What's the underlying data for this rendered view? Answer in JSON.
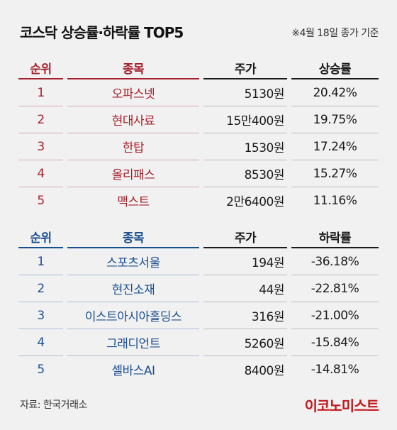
{
  "title": "코스닥 상승률·하락률 TOP5",
  "basis_date": "※4월 18일 종가 기준",
  "gainers": {
    "headers": {
      "rank": "순위",
      "name": "종목",
      "price": "주가",
      "rate": "상승률"
    },
    "rows": [
      {
        "rank": "1",
        "name": "오파스넷",
        "price": "5130원",
        "rate": "20.42%"
      },
      {
        "rank": "2",
        "name": "현대사료",
        "price": "15만400원",
        "rate": "19.75%"
      },
      {
        "rank": "3",
        "name": "한탑",
        "price": "1530원",
        "rate": "17.24%"
      },
      {
        "rank": "4",
        "name": "올리패스",
        "price": "8530원",
        "rate": "15.27%"
      },
      {
        "rank": "5",
        "name": "맥스트",
        "price": "2만6400원",
        "rate": "11.16%"
      }
    ]
  },
  "losers": {
    "headers": {
      "rank": "순위",
      "name": "종목",
      "price": "주가",
      "rate": "하락률"
    },
    "rows": [
      {
        "rank": "1",
        "name": "스포츠서울",
        "price": "194원",
        "rate": "-36.18%"
      },
      {
        "rank": "2",
        "name": "현진소재",
        "price": "44원",
        "rate": "-22.81%"
      },
      {
        "rank": "3",
        "name": "이스트아시아홀딩스",
        "price": "316원",
        "rate": "-21.00%"
      },
      {
        "rank": "4",
        "name": "그래디언트",
        "price": "5260원",
        "rate": "-15.84%"
      },
      {
        "rank": "5",
        "name": "셀바스AI",
        "price": "8400원",
        "rate": "-14.81%"
      }
    ]
  },
  "source": "자료: 한국거래소",
  "brand": "이코노미스트",
  "colors": {
    "gainer_accent": "#a51f2b",
    "loser_accent": "#1a4f8f",
    "brand": "#c4161c",
    "background": "#f1f1f1"
  }
}
